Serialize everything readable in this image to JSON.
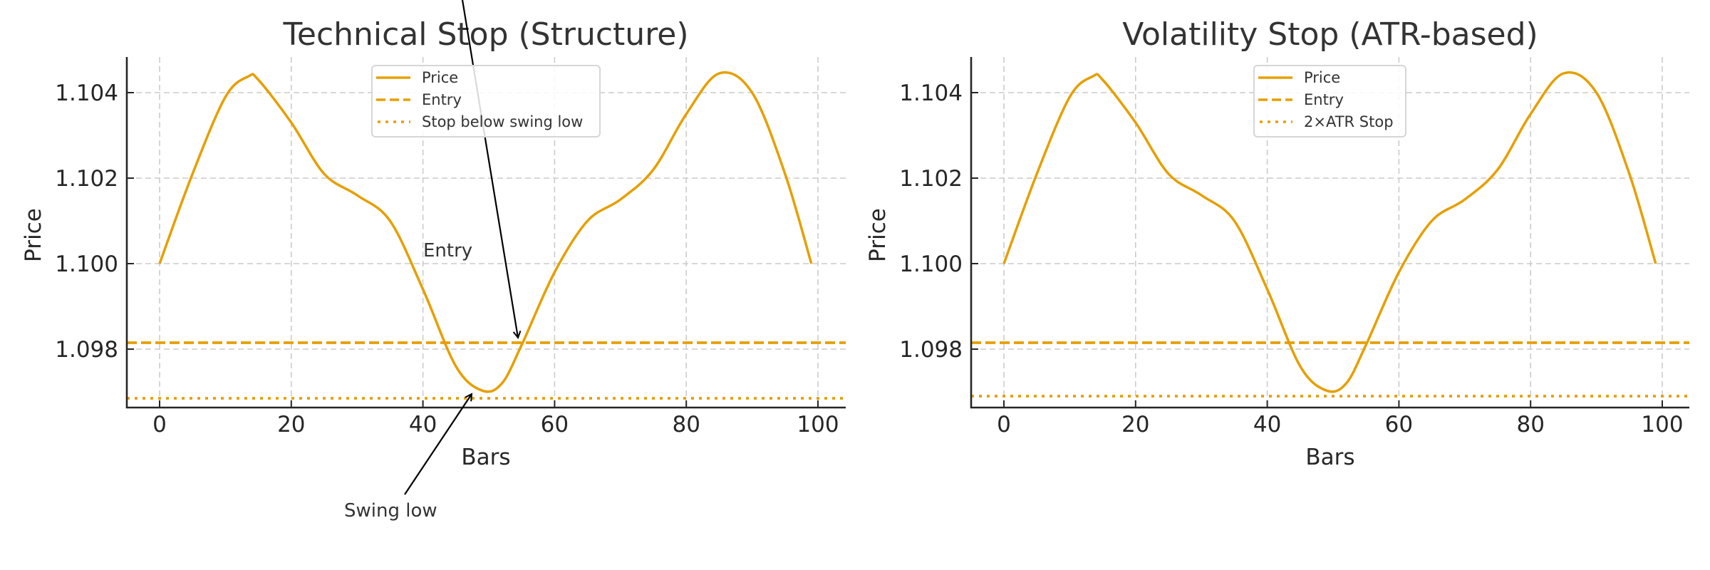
{
  "chart_data": [
    {
      "type": "line",
      "title": "Technical Stop (Structure)",
      "xlabel": "Bars",
      "ylabel": "Price",
      "xlim": [
        -5,
        104
      ],
      "ylim": [
        1.09672,
        1.10482
      ],
      "xticks": [
        0,
        20,
        40,
        60,
        80,
        100
      ],
      "xtick_labels": [
        "0",
        "20",
        "40",
        "60",
        "80",
        "100"
      ],
      "yticks": [
        1.098,
        1.1,
        1.102,
        1.104
      ],
      "ytick_labels": [
        "1.098",
        "1.100",
        "1.102",
        "1.104"
      ],
      "grid": true,
      "legend_position": "upper center",
      "series": [
        {
          "name": "Price",
          "style": "solid",
          "color": "#E69F00",
          "x": [
            0,
            5,
            10,
            13.5,
            15,
            20,
            25,
            30,
            35,
            40,
            45,
            49,
            52,
            55,
            60,
            65,
            70,
            75,
            80,
            85,
            90,
            95,
            99
          ],
          "values": [
            1.1,
            1.1021,
            1.1039,
            1.10438,
            1.1043,
            1.1033,
            1.1021,
            1.1016,
            1.101,
            1.0994,
            1.0976,
            1.09703,
            1.0972,
            1.0981,
            1.0998,
            1.101,
            1.1015,
            1.1022,
            1.1035,
            1.10445,
            1.104,
            1.1021,
            1.1
          ]
        },
        {
          "name": "Entry",
          "style": "dashed",
          "color": "#E69F00",
          "y": 1.09815
        },
        {
          "name": "Stop below swing low",
          "style": "dotted",
          "color": "#E69F00",
          "y": 1.09685
        }
      ],
      "annotations": [
        {
          "text": "Entry",
          "xy": [
            54.5,
            1.09815
          ],
          "xytext": [
            40.5,
            1.1002
          ]
        },
        {
          "text": "Swing low",
          "xy": [
            47.5,
            1.09703
          ],
          "xytext": [
            28,
            1.0945
          ]
        }
      ]
    },
    {
      "type": "line",
      "title": "Volatility Stop (ATR-based)",
      "xlabel": "Bars",
      "ylabel": "Price",
      "xlim": [
        -5,
        104
      ],
      "ylim": [
        1.09672,
        1.10482
      ],
      "xticks": [
        0,
        20,
        40,
        60,
        80,
        100
      ],
      "xtick_labels": [
        "0",
        "20",
        "40",
        "60",
        "80",
        "100"
      ],
      "yticks": [
        1.098,
        1.1,
        1.102,
        1.104
      ],
      "ytick_labels": [
        "1.098",
        "1.100",
        "1.102",
        "1.104"
      ],
      "grid": true,
      "legend_position": "upper center",
      "series": [
        {
          "name": "Price",
          "style": "solid",
          "color": "#E69F00",
          "x": [
            0,
            5,
            10,
            13.5,
            15,
            20,
            25,
            30,
            35,
            40,
            45,
            49,
            52,
            55,
            60,
            65,
            70,
            75,
            80,
            85,
            90,
            95,
            99
          ],
          "values": [
            1.1,
            1.1021,
            1.1039,
            1.10438,
            1.1043,
            1.1033,
            1.1021,
            1.1016,
            1.101,
            1.0994,
            1.0976,
            1.09703,
            1.0972,
            1.0981,
            1.0998,
            1.101,
            1.1015,
            1.1022,
            1.1035,
            1.10445,
            1.104,
            1.1021,
            1.1
          ]
        },
        {
          "name": "Entry",
          "style": "dashed",
          "color": "#E69F00",
          "y": 1.09815
        },
        {
          "name": "2×ATR Stop",
          "style": "dotted",
          "color": "#E69F00",
          "y": 1.0969
        }
      ],
      "annotations": []
    }
  ],
  "left": {
    "title": "Technical Stop (Structure)",
    "xlabel": "Bars",
    "ylabel": "Price",
    "legend": [
      "Price",
      "Entry",
      "Stop below swing low"
    ],
    "annot_entry": "Entry",
    "annot_swing": "Swing low"
  },
  "right": {
    "title": "Volatility Stop (ATR-based)",
    "xlabel": "Bars",
    "ylabel": "Price",
    "legend": [
      "Price",
      "Entry",
      "2×ATR Stop"
    ]
  },
  "colors": {
    "line": "#E69F00",
    "grid": "#cccccc",
    "axis": "#262626",
    "arrow": "#000000"
  }
}
